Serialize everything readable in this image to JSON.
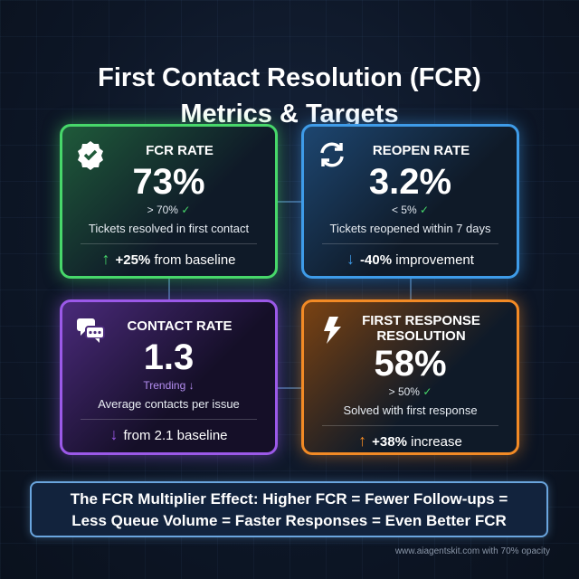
{
  "title_line1": "First Contact Resolution (FCR)",
  "title_line2": "Metrics & Targets",
  "cards": [
    {
      "label": "FCR RATE",
      "value": "73%",
      "target": "> 70%",
      "target_mark": "✓",
      "description": "Tickets resolved in first contact",
      "change_arrow": "↑",
      "change_bold": "+25%",
      "change_text": "from baseline",
      "color": "#47d76a",
      "icon": "verified-badge-icon"
    },
    {
      "label": "REOPEN RATE",
      "value": "3.2%",
      "target": "< 5%",
      "target_mark": "✓",
      "description": "Tickets reopened within 7 days",
      "change_arrow": "↓",
      "change_bold": "-40%",
      "change_text": "improvement",
      "color": "#3e9be8",
      "icon": "refresh-icon"
    },
    {
      "label": "CONTACT RATE",
      "value": "1.3",
      "target": "Trending",
      "target_mark": "↓",
      "description": "Average contacts per issue",
      "change_arrow": "↓",
      "change_bold": "",
      "change_text": "from 2.1 baseline",
      "color": "#9b59e8",
      "icon": "chat-bubbles-icon"
    },
    {
      "label": "FIRST RESPONSE RESOLUTION",
      "value": "58%",
      "target": "> 50%",
      "target_mark": "✓",
      "description": "Solved with first response",
      "change_arrow": "↑",
      "change_bold": "+38%",
      "change_text": "increase",
      "color": "#f28a25",
      "icon": "lightning-icon"
    }
  ],
  "banner_line1": "The FCR Multiplier Effect: Higher FCR = Fewer Follow-ups =",
  "banner_line2": "Less Queue Volume = Faster Responses = Even Better FCR",
  "footer": "www.aiagentskit.com with 70% opacity"
}
